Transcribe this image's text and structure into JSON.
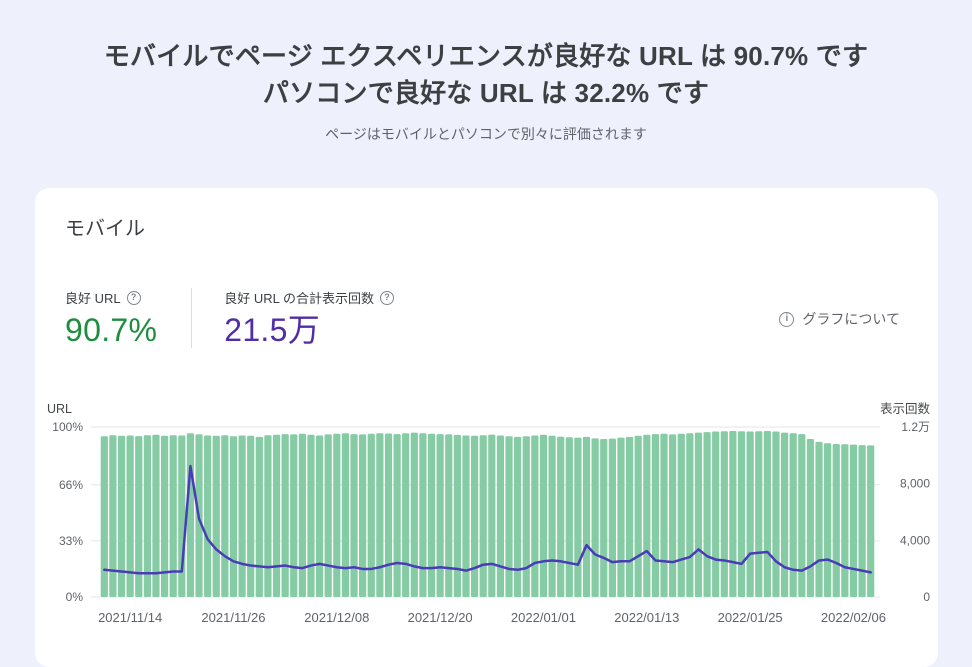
{
  "header": {
    "title_line1": "モバイルでページ エクスペリエンスが良好な URL は 90.7% です",
    "title_line2": "パソコンで良好な URL は 32.2% です",
    "subtitle": "ページはモバイルとパソコンで別々に評価されます"
  },
  "card": {
    "title": "モバイル",
    "metrics": [
      {
        "label": "良好 URL",
        "value": "90.7%",
        "color": "#1e8e3e"
      },
      {
        "label": "良好 URL の合計表示回数",
        "value": "21.5万",
        "color": "#512da8"
      }
    ],
    "about_link": "グラフについて"
  },
  "icons": {
    "help": "?",
    "info": "i"
  },
  "chart_data": {
    "type": "bar",
    "title": "モバイル 良好 URL / 表示回数",
    "x": [
      "2021/11/11",
      "2021/11/12",
      "2021/11/13",
      "2021/11/14",
      "2021/11/15",
      "2021/11/16",
      "2021/11/17",
      "2021/11/18",
      "2021/11/19",
      "2021/11/20",
      "2021/11/21",
      "2021/11/22",
      "2021/11/23",
      "2021/11/24",
      "2021/11/25",
      "2021/11/26",
      "2021/11/27",
      "2021/11/28",
      "2021/11/29",
      "2021/11/30",
      "2021/12/01",
      "2021/12/02",
      "2021/12/03",
      "2021/12/04",
      "2021/12/05",
      "2021/12/06",
      "2021/12/07",
      "2021/12/08",
      "2021/12/09",
      "2021/12/10",
      "2021/12/11",
      "2021/12/12",
      "2021/12/13",
      "2021/12/14",
      "2021/12/15",
      "2021/12/16",
      "2021/12/17",
      "2021/12/18",
      "2021/12/19",
      "2021/12/20",
      "2021/12/21",
      "2021/12/22",
      "2021/12/23",
      "2021/12/24",
      "2021/12/25",
      "2021/12/26",
      "2021/12/27",
      "2021/12/28",
      "2021/12/29",
      "2021/12/30",
      "2021/12/31",
      "2022/01/01",
      "2022/01/02",
      "2022/01/03",
      "2022/01/04",
      "2022/01/05",
      "2022/01/06",
      "2022/01/07",
      "2022/01/08",
      "2022/01/09",
      "2022/01/10",
      "2022/01/11",
      "2022/01/12",
      "2022/01/13",
      "2022/01/14",
      "2022/01/15",
      "2022/01/16",
      "2022/01/17",
      "2022/01/18",
      "2022/01/19",
      "2022/01/20",
      "2022/01/21",
      "2022/01/22",
      "2022/01/23",
      "2022/01/24",
      "2022/01/25",
      "2022/01/26",
      "2022/01/27",
      "2022/01/28",
      "2022/01/29",
      "2022/01/30",
      "2022/01/31",
      "2022/02/01",
      "2022/02/02",
      "2022/02/03",
      "2022/02/04",
      "2022/02/05",
      "2022/02/06",
      "2022/02/07",
      "2022/02/08"
    ],
    "x_tick_indices": [
      3,
      15,
      27,
      39,
      51,
      63,
      75,
      87
    ],
    "x_tick_labels": [
      "2021/11/14",
      "2021/11/26",
      "2021/12/08",
      "2021/12/20",
      "2022/01/01",
      "2022/01/13",
      "2022/01/25",
      "2022/02/06"
    ],
    "bar_series": {
      "name": "表示回数",
      "axis": "right",
      "color": "#85cba3",
      "values": [
        11350,
        11420,
        11380,
        11400,
        11360,
        11420,
        11450,
        11380,
        11420,
        11400,
        11560,
        11480,
        11400,
        11380,
        11420,
        11350,
        11400,
        11380,
        11300,
        11420,
        11450,
        11500,
        11480,
        11520,
        11450,
        11400,
        11480,
        11520,
        11560,
        11500,
        11480,
        11520,
        11560,
        11540,
        11500,
        11560,
        11600,
        11560,
        11520,
        11500,
        11480,
        11440,
        11400,
        11380,
        11420,
        11460,
        11400,
        11350,
        11300,
        11350,
        11400,
        11450,
        11380,
        11320,
        11280,
        11250,
        11300,
        11200,
        11150,
        11180,
        11250,
        11300,
        11380,
        11450,
        11500,
        11520,
        11480,
        11520,
        11560,
        11600,
        11640,
        11680,
        11700,
        11720,
        11700,
        11680,
        11700,
        11720,
        11680,
        11600,
        11560,
        11500,
        11150,
        10950,
        10850,
        10800,
        10780,
        10760,
        10720,
        10700
      ]
    },
    "line_series": {
      "name": "良好 URL",
      "axis": "left",
      "color": "#4a3cb8",
      "values": [
        16,
        15.5,
        15,
        14.5,
        14,
        14,
        14,
        14.5,
        15,
        15,
        77,
        46,
        34,
        28,
        24,
        21,
        19.5,
        18.5,
        18,
        17.5,
        18,
        18.5,
        17.5,
        17,
        18.5,
        19.5,
        18.5,
        17.5,
        17,
        17.5,
        16.5,
        16.5,
        17.5,
        19,
        20,
        19.5,
        18,
        17,
        17,
        17.5,
        17,
        16.5,
        15.5,
        17,
        19,
        19.5,
        18,
        16.5,
        16,
        17,
        20,
        21,
        21.5,
        21,
        20,
        19,
        30.5,
        25,
        23,
        20.5,
        21,
        21,
        24,
        27,
        21.5,
        21,
        20.5,
        22,
        23.5,
        28,
        24,
        22,
        21.5,
        20.5,
        19.5,
        25.5,
        26,
        26.5,
        21,
        17.5,
        16,
        15.5,
        18,
        21.5,
        22,
        20,
        17.5,
        16.5,
        15.5,
        14.5
      ]
    },
    "y_left": {
      "label": "URL",
      "min": 0,
      "max": 100,
      "ticks": [
        {
          "value": 100,
          "label": "100%"
        },
        {
          "value": 66,
          "label": "66%"
        },
        {
          "value": 33,
          "label": "33%"
        },
        {
          "value": 0,
          "label": "0%"
        }
      ]
    },
    "y_right": {
      "label": "表示回数",
      "min": 0,
      "max": 12000,
      "ticks": [
        {
          "value": 12000,
          "label": "1.2万"
        },
        {
          "value": 8000,
          "label": "8,000"
        },
        {
          "value": 4000,
          "label": "4,000"
        },
        {
          "value": 0,
          "label": "0"
        }
      ]
    },
    "grid": true,
    "legend": "none"
  }
}
